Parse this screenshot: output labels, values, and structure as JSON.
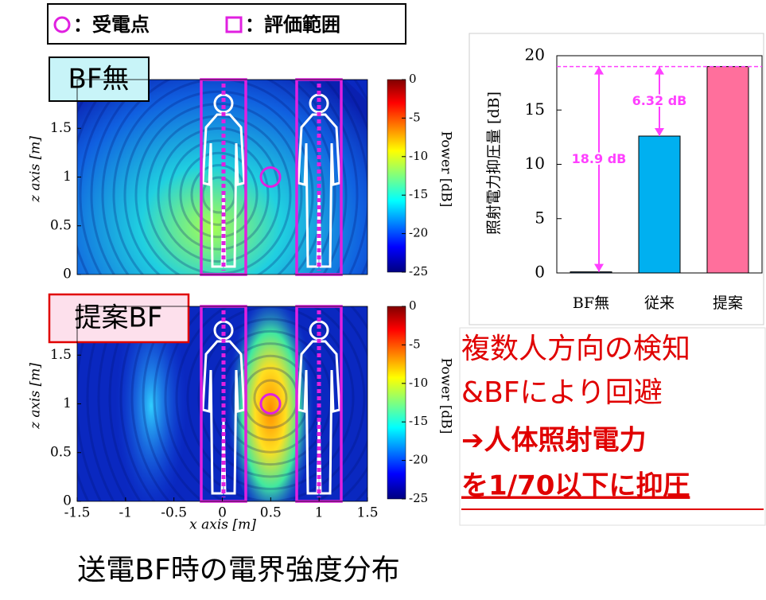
{
  "legend": {
    "circle": "：受電点",
    "square": "：評価範囲"
  },
  "heatmaps": [
    {
      "label": "BF無"
    },
    {
      "label": "提案BF"
    }
  ],
  "heatmap_axes": {
    "xlabel": "x axis [m]",
    "zlabel": "z axis [m]",
    "xlim": [
      -1.5,
      1.5
    ],
    "xticks": [
      -1.5,
      -1,
      -0.5,
      0,
      0.5,
      1,
      1.5
    ],
    "zlim": [
      0,
      2
    ],
    "zticks": [
      0,
      0.5,
      1,
      1.5
    ],
    "colorbar_label": "Power [dB]",
    "clim": [
      -25,
      0
    ],
    "cticks": [
      0,
      -5,
      -10,
      -15,
      -20,
      -25
    ]
  },
  "chart_data": {
    "type": "bar",
    "ylabel": "照射電力抑圧量 [dB]",
    "categories": [
      "BF無",
      "従来",
      "提案"
    ],
    "values": [
      0.1,
      12.6,
      19
    ],
    "colors": [
      "#1f4e79",
      "#00b0f0",
      "#ff6f9c"
    ],
    "ylim": [
      0,
      20
    ],
    "yticks": [
      0,
      5,
      10,
      15,
      20
    ],
    "annotations": [
      "6.32 dB",
      "18.9 dB"
    ]
  },
  "callout": {
    "lines": [
      "複数人方向の検知",
      "&BFにより回避",
      "➔人体照射電力",
      "を1/70以下に抑圧"
    ]
  },
  "caption": "送電BF時の電界強度分布"
}
